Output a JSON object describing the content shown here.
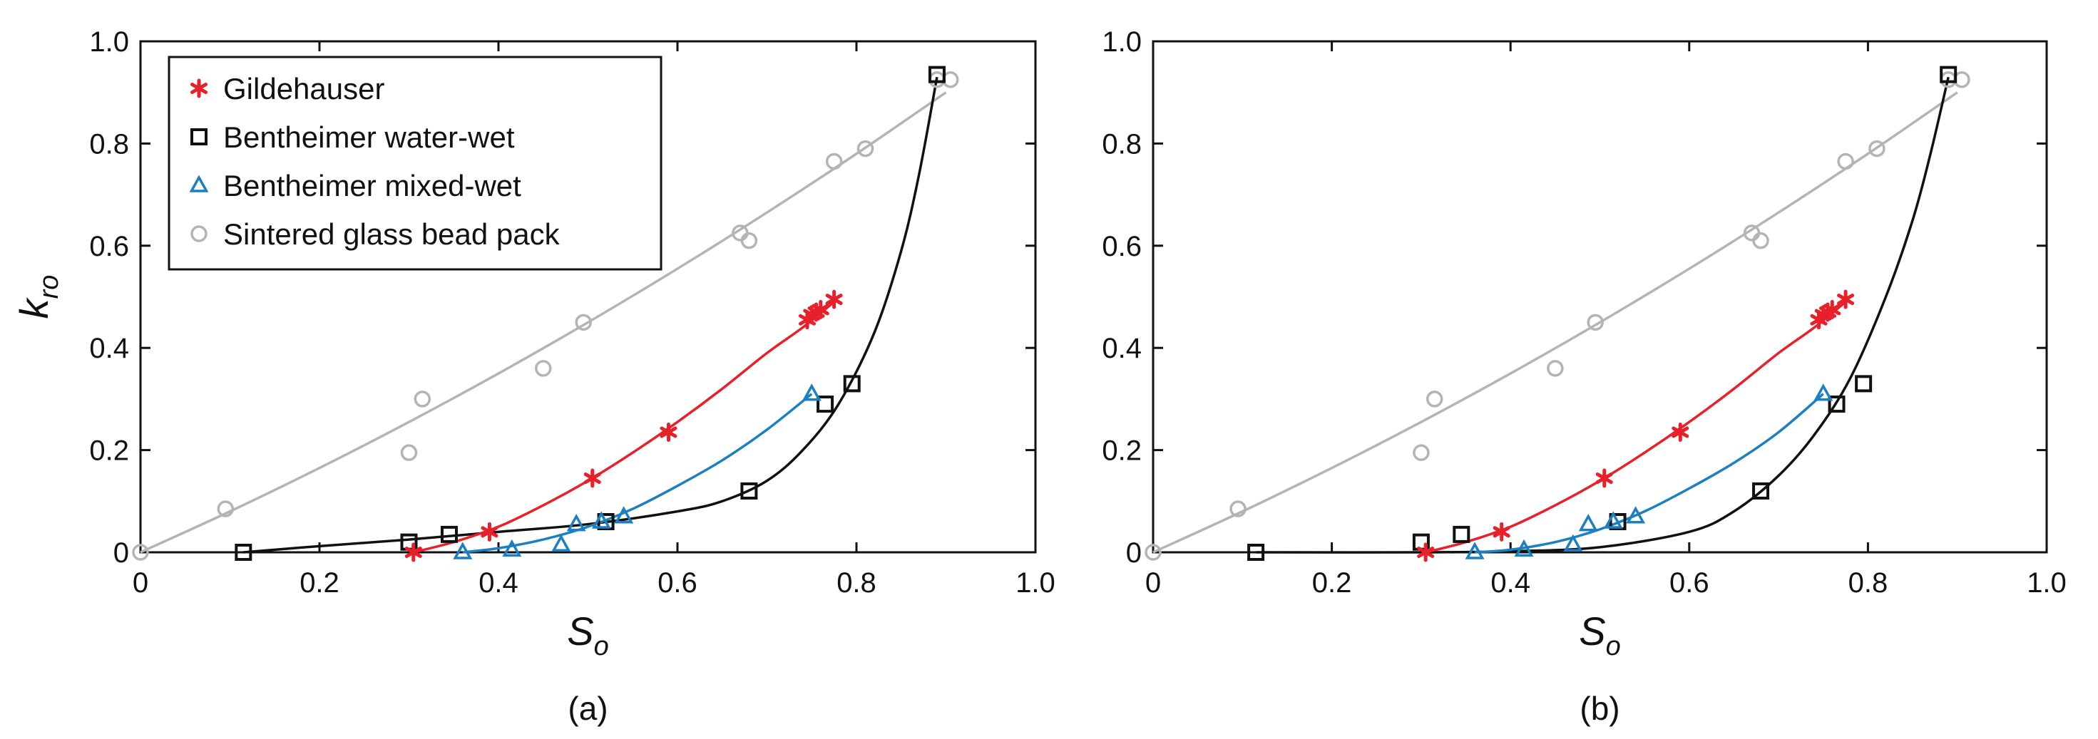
{
  "chart_data": [
    {
      "type": "scatter",
      "panel_label": "(a)",
      "xlabel_main": "S",
      "xlabel_sub": "o",
      "ylabel_main": "k",
      "ylabel_sub": "ro",
      "xlim": [
        0,
        1.0
      ],
      "ylim": [
        0,
        1.0
      ],
      "x_ticks": [
        "0",
        "0.2",
        "0.4",
        "0.6",
        "0.8",
        "1.0"
      ],
      "y_ticks": [
        "0",
        "0.2",
        "0.4",
        "0.6",
        "0.8",
        "1.0"
      ],
      "grid": false,
      "legend": {
        "placement": "top-left",
        "show": true
      },
      "series": [
        {
          "name": "Gildehauser",
          "marker": "asterisk",
          "color": "#e8202a",
          "points": [
            [
              0.305,
              0.0
            ],
            [
              0.39,
              0.04
            ],
            [
              0.505,
              0.145
            ],
            [
              0.59,
              0.235
            ],
            [
              0.745,
              0.455
            ],
            [
              0.75,
              0.465
            ],
            [
              0.755,
              0.47
            ],
            [
              0.76,
              0.475
            ],
            [
              0.775,
              0.495
            ]
          ],
          "fit": [
            [
              0.305,
              0.0
            ],
            [
              0.35,
              0.02
            ],
            [
              0.4,
              0.05
            ],
            [
              0.45,
              0.092
            ],
            [
              0.5,
              0.14
            ],
            [
              0.55,
              0.195
            ],
            [
              0.6,
              0.255
            ],
            [
              0.65,
              0.32
            ],
            [
              0.7,
              0.39
            ],
            [
              0.74,
              0.44
            ],
            [
              0.775,
              0.49
            ]
          ]
        },
        {
          "name": "Bentheimer water-wet",
          "marker": "square",
          "color": "#111111",
          "points": [
            [
              0.115,
              0.0
            ],
            [
              0.3,
              0.02
            ],
            [
              0.345,
              0.035
            ],
            [
              0.52,
              0.06
            ],
            [
              0.68,
              0.12
            ],
            [
              0.765,
              0.29
            ],
            [
              0.795,
              0.33
            ],
            [
              0.89,
              0.935
            ]
          ],
          "fit": [
            [
              0.115,
              0.0
            ],
            [
              0.2,
              0.012
            ],
            [
              0.3,
              0.025
            ],
            [
              0.4,
              0.04
            ],
            [
              0.5,
              0.055
            ],
            [
              0.6,
              0.08
            ],
            [
              0.65,
              0.1
            ],
            [
              0.7,
              0.14
            ],
            [
              0.74,
              0.2
            ],
            [
              0.78,
              0.29
            ],
            [
              0.82,
              0.43
            ],
            [
              0.85,
              0.59
            ],
            [
              0.87,
              0.74
            ],
            [
              0.89,
              0.93
            ]
          ]
        },
        {
          "name": "Bentheimer mixed-wet",
          "marker": "triangle",
          "color": "#1b7fc2",
          "points": [
            [
              0.36,
              0.0
            ],
            [
              0.415,
              0.005
            ],
            [
              0.47,
              0.015
            ],
            [
              0.487,
              0.055
            ],
            [
              0.515,
              0.06
            ],
            [
              0.54,
              0.07
            ],
            [
              0.75,
              0.31
            ]
          ],
          "fit": [
            [
              0.36,
              0.0
            ],
            [
              0.4,
              0.008
            ],
            [
              0.45,
              0.025
            ],
            [
              0.5,
              0.05
            ],
            [
              0.55,
              0.085
            ],
            [
              0.6,
              0.13
            ],
            [
              0.65,
              0.18
            ],
            [
              0.7,
              0.24
            ],
            [
              0.75,
              0.31
            ]
          ]
        },
        {
          "name": "Sintered glass bead pack",
          "marker": "circle",
          "color": "#b4b4b4",
          "points": [
            [
              0.0,
              0.0
            ],
            [
              0.095,
              0.085
            ],
            [
              0.3,
              0.195
            ],
            [
              0.315,
              0.3
            ],
            [
              0.45,
              0.36
            ],
            [
              0.495,
              0.45
            ],
            [
              0.67,
              0.625
            ],
            [
              0.68,
              0.61
            ],
            [
              0.775,
              0.765
            ],
            [
              0.81,
              0.79
            ],
            [
              0.89,
              0.925
            ],
            [
              0.905,
              0.925
            ]
          ],
          "fit": [
            [
              0.0,
              0.0
            ],
            [
              0.1,
              0.08
            ],
            [
              0.2,
              0.165
            ],
            [
              0.3,
              0.255
            ],
            [
              0.4,
              0.35
            ],
            [
              0.5,
              0.45
            ],
            [
              0.6,
              0.555
            ],
            [
              0.7,
              0.665
            ],
            [
              0.8,
              0.78
            ],
            [
              0.9,
              0.9
            ]
          ]
        }
      ]
    },
    {
      "type": "scatter",
      "panel_label": "(b)",
      "xlabel_main": "S",
      "xlabel_sub": "o",
      "ylabel_main": "",
      "ylabel_sub": "",
      "xlim": [
        0,
        1.0
      ],
      "ylim": [
        0,
        1.0
      ],
      "x_ticks": [
        "0",
        "0.2",
        "0.4",
        "0.6",
        "0.8",
        "1.0"
      ],
      "y_ticks": [
        "0",
        "0.2",
        "0.4",
        "0.6",
        "0.8",
        "1.0"
      ],
      "grid": false,
      "legend": {
        "show": false
      },
      "series": [
        {
          "name": "Gildehauser",
          "marker": "asterisk",
          "color": "#e8202a",
          "points": [
            [
              0.305,
              0.0
            ],
            [
              0.39,
              0.04
            ],
            [
              0.505,
              0.145
            ],
            [
              0.59,
              0.235
            ],
            [
              0.745,
              0.455
            ],
            [
              0.75,
              0.465
            ],
            [
              0.755,
              0.47
            ],
            [
              0.76,
              0.475
            ],
            [
              0.775,
              0.495
            ]
          ],
          "fit": [
            [
              0.305,
              0.0
            ],
            [
              0.35,
              0.02
            ],
            [
              0.4,
              0.05
            ],
            [
              0.45,
              0.092
            ],
            [
              0.5,
              0.14
            ],
            [
              0.55,
              0.195
            ],
            [
              0.6,
              0.255
            ],
            [
              0.65,
              0.32
            ],
            [
              0.7,
              0.39
            ],
            [
              0.74,
              0.44
            ],
            [
              0.775,
              0.49
            ]
          ]
        },
        {
          "name": "Bentheimer water-wet",
          "marker": "square",
          "color": "#111111",
          "points": [
            [
              0.115,
              0.0
            ],
            [
              0.3,
              0.02
            ],
            [
              0.345,
              0.035
            ],
            [
              0.52,
              0.06
            ],
            [
              0.68,
              0.12
            ],
            [
              0.765,
              0.29
            ],
            [
              0.795,
              0.33
            ],
            [
              0.89,
              0.935
            ]
          ],
          "fit": [
            [
              0.115,
              0.0
            ],
            [
              0.3,
              0.0
            ],
            [
              0.4,
              0.002
            ],
            [
              0.5,
              0.01
            ],
            [
              0.6,
              0.04
            ],
            [
              0.65,
              0.08
            ],
            [
              0.7,
              0.15
            ],
            [
              0.74,
              0.23
            ],
            [
              0.78,
              0.34
            ],
            [
              0.82,
              0.5
            ],
            [
              0.85,
              0.65
            ],
            [
              0.87,
              0.78
            ],
            [
              0.89,
              0.93
            ]
          ]
        },
        {
          "name": "Bentheimer mixed-wet",
          "marker": "triangle",
          "color": "#1b7fc2",
          "points": [
            [
              0.36,
              0.0
            ],
            [
              0.415,
              0.005
            ],
            [
              0.47,
              0.015
            ],
            [
              0.487,
              0.055
            ],
            [
              0.515,
              0.06
            ],
            [
              0.54,
              0.07
            ],
            [
              0.75,
              0.31
            ]
          ],
          "fit": [
            [
              0.36,
              0.0
            ],
            [
              0.4,
              0.005
            ],
            [
              0.45,
              0.02
            ],
            [
              0.5,
              0.045
            ],
            [
              0.55,
              0.08
            ],
            [
              0.6,
              0.125
            ],
            [
              0.65,
              0.175
            ],
            [
              0.7,
              0.235
            ],
            [
              0.75,
              0.31
            ]
          ]
        },
        {
          "name": "Sintered glass bead pack",
          "marker": "circle",
          "color": "#b4b4b4",
          "points": [
            [
              0.0,
              0.0
            ],
            [
              0.095,
              0.085
            ],
            [
              0.3,
              0.195
            ],
            [
              0.315,
              0.3
            ],
            [
              0.45,
              0.36
            ],
            [
              0.495,
              0.45
            ],
            [
              0.67,
              0.625
            ],
            [
              0.68,
              0.61
            ],
            [
              0.775,
              0.765
            ],
            [
              0.81,
              0.79
            ],
            [
              0.89,
              0.925
            ],
            [
              0.905,
              0.925
            ]
          ],
          "fit": [
            [
              0.0,
              0.0
            ],
            [
              0.1,
              0.08
            ],
            [
              0.2,
              0.165
            ],
            [
              0.3,
              0.255
            ],
            [
              0.4,
              0.35
            ],
            [
              0.5,
              0.45
            ],
            [
              0.6,
              0.555
            ],
            [
              0.7,
              0.665
            ],
            [
              0.8,
              0.78
            ],
            [
              0.9,
              0.9
            ]
          ]
        }
      ]
    }
  ]
}
